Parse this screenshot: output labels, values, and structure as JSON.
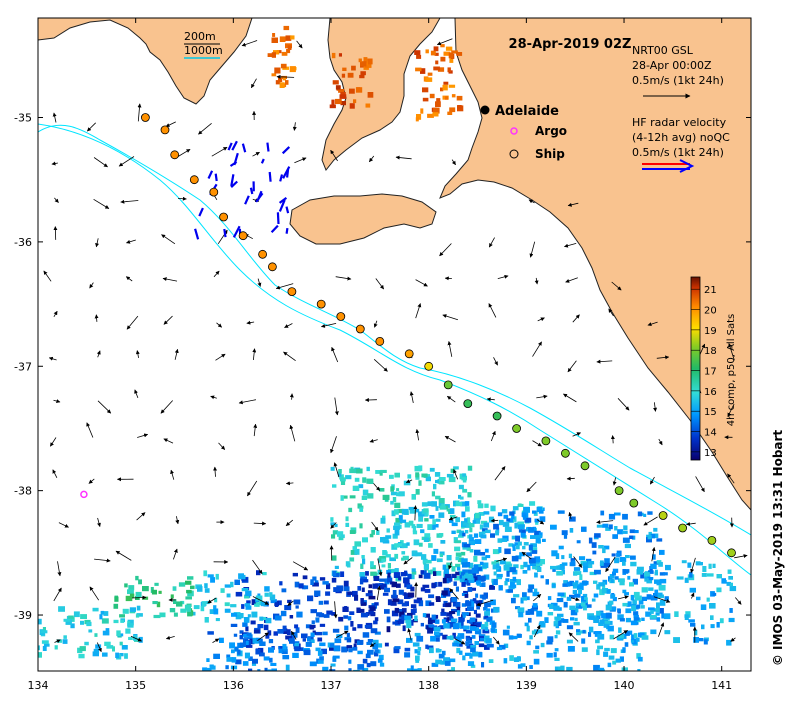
{
  "map": {
    "title": "28-Apr-2019 02Z",
    "credit": "© IMOS 03-May-2019 13:31 Hobart",
    "x_ticks": [
      134,
      135,
      136,
      137,
      138,
      139,
      140,
      141
    ],
    "y_ticks": [
      -35,
      -36,
      -37,
      -38,
      -39
    ],
    "lon_range": [
      134.0,
      141.3
    ],
    "lat_range": [
      -39.45,
      -34.2
    ],
    "colors": {
      "land": "#f9c38f",
      "land_edge": "#222222",
      "isobath": "#00e5ff",
      "ship_outline": "#000000",
      "argo": "#ff33ff",
      "radar_red": "#ff0000",
      "radar_blue": "#0000ff"
    }
  },
  "legend": {
    "isobath_200": "200m",
    "isobath_1000": "1000m",
    "adelaide": "Adelaide",
    "argo": "Argo",
    "ship": "Ship",
    "gsl_line1": "NRT00 GSL",
    "gsl_line2": "28-Apr 00:00Z",
    "gsl_line3": "0.5m/s (1kt 24h)",
    "hf_line1": "HF radar velocity",
    "hf_line2": "(4-12h avg) noQC",
    "hf_line3": "0.5m/s (1kt 24h)"
  },
  "colorbar": {
    "label": "4h comp, p50, All Sats",
    "ticks": [
      13,
      14,
      15,
      16,
      17,
      18,
      19,
      20,
      21
    ],
    "min": 12.6,
    "max": 21.6,
    "stops": [
      "#08006e",
      "#0033cc",
      "#0099ff",
      "#33ddd7",
      "#22bb66",
      "#88cc22",
      "#ffdd00",
      "#ff8800",
      "#cc3300",
      "#661100"
    ]
  },
  "markers": {
    "adelaide": {
      "lon": 138.6,
      "lat": -34.93
    },
    "argo": {
      "lon": 134.47,
      "lat": -38.03
    },
    "ships": [
      {
        "lon": 135.1,
        "lat": -35.0,
        "temp": 19.5
      },
      {
        "lon": 135.3,
        "lat": -35.1,
        "temp": 19.5
      },
      {
        "lon": 135.4,
        "lat": -35.3,
        "temp": 19.5
      },
      {
        "lon": 135.6,
        "lat": -35.5,
        "temp": 19.5
      },
      {
        "lon": 135.8,
        "lat": -35.6,
        "temp": 19.5
      },
      {
        "lon": 135.9,
        "lat": -35.8,
        "temp": 19.5
      },
      {
        "lon": 136.1,
        "lat": -35.95,
        "temp": 19.5
      },
      {
        "lon": 136.3,
        "lat": -36.1,
        "temp": 19.5
      },
      {
        "lon": 136.4,
        "lat": -36.2,
        "temp": 19.5
      },
      {
        "lon": 136.6,
        "lat": -36.4,
        "temp": 19.5
      },
      {
        "lon": 136.9,
        "lat": -36.5,
        "temp": 19.5
      },
      {
        "lon": 137.1,
        "lat": -36.6,
        "temp": 19.5
      },
      {
        "lon": 137.3,
        "lat": -36.7,
        "temp": 19.5
      },
      {
        "lon": 137.5,
        "lat": -36.8,
        "temp": 19.5
      },
      {
        "lon": 137.8,
        "lat": -36.9,
        "temp": 19.3
      },
      {
        "lon": 138.0,
        "lat": -37.0,
        "temp": 18.5
      },
      {
        "lon": 138.2,
        "lat": -37.15,
        "temp": 17.3
      },
      {
        "lon": 138.4,
        "lat": -37.3,
        "temp": 16.8
      },
      {
        "lon": 138.7,
        "lat": -37.4,
        "temp": 16.8
      },
      {
        "lon": 138.9,
        "lat": -37.5,
        "temp": 17.5
      },
      {
        "lon": 139.2,
        "lat": -37.6,
        "temp": 17.5
      },
      {
        "lon": 139.4,
        "lat": -37.7,
        "temp": 17.5
      },
      {
        "lon": 139.6,
        "lat": -37.8,
        "temp": 17.5
      },
      {
        "lon": 139.95,
        "lat": -38.0,
        "temp": 17.5
      },
      {
        "lon": 140.1,
        "lat": -38.1,
        "temp": 17.5
      },
      {
        "lon": 140.4,
        "lat": -38.2,
        "temp": 18.0
      },
      {
        "lon": 140.6,
        "lat": -38.3,
        "temp": 17.8
      },
      {
        "lon": 140.9,
        "lat": -38.4,
        "temp": 17.8
      },
      {
        "lon": 141.1,
        "lat": -38.5,
        "temp": 17.8
      }
    ]
  }
}
